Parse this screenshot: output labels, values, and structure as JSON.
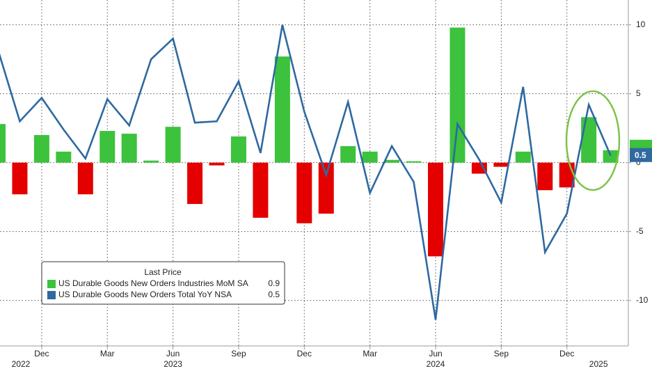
{
  "chart_data": {
    "type": "bar-line",
    "categories": [
      null,
      null,
      "Dec",
      null,
      null,
      "Mar",
      null,
      null,
      "Jun",
      null,
      null,
      "Sep",
      null,
      null,
      "Dec",
      null,
      null,
      "Mar",
      null,
      null,
      "Jun",
      null,
      null,
      "Sep",
      null,
      null,
      "Dec",
      null,
      null
    ],
    "year_labels": [
      null,
      "2022",
      null,
      null,
      null,
      null,
      null,
      null,
      "2023",
      null,
      null,
      null,
      null,
      null,
      null,
      null,
      null,
      null,
      null,
      null,
      "2024",
      null,
      null,
      null,
      null,
      null,
      null,
      "2025",
      null
    ],
    "series": [
      {
        "name": "US Durable Goods New Orders Industries MoM SA",
        "type": "bar",
        "positive_color": "#3cc23c",
        "negative_color": "#e50000",
        "values": [
          2.8,
          -2.3,
          2.0,
          0.8,
          -2.3,
          2.3,
          2.1,
          0.15,
          2.6,
          -3.0,
          -0.2,
          1.9,
          -4.0,
          7.7,
          -4.4,
          -3.7,
          1.2,
          0.8,
          0.2,
          0.1,
          -6.8,
          9.8,
          -0.8,
          -0.3,
          0.8,
          -2.0,
          -1.8,
          3.3,
          0.9
        ]
      },
      {
        "name": "US Durable Goods New Orders Total YoY NSA",
        "type": "line",
        "color": "#2e69a0",
        "values": [
          8.2,
          3.0,
          4.7,
          2.4,
          0.3,
          4.6,
          2.7,
          7.5,
          9.0,
          2.9,
          3.0,
          5.9,
          0.7,
          10.0,
          3.7,
          -0.9,
          4.4,
          -2.2,
          1.2,
          -1.4,
          -11.4,
          2.8,
          0.2,
          -2.9,
          5.5,
          -6.5,
          -3.7,
          4.2,
          0.5
        ]
      }
    ],
    "legend_title": "Last Price",
    "ylim": [
      -13.3,
      11.8
    ],
    "yticks": [
      -10,
      -5,
      0,
      5,
      10
    ],
    "grid": true
  }
}
